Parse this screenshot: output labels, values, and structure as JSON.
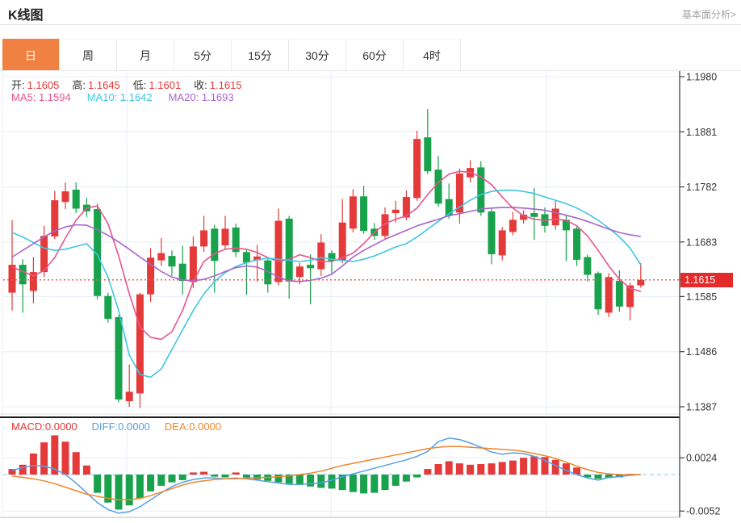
{
  "header": {
    "title": "K线图",
    "link": "基本面分析>"
  },
  "tabs": {
    "items": [
      "日",
      "周",
      "月",
      "5分",
      "15分",
      "30分",
      "60分",
      "4时"
    ],
    "active_index": 0
  },
  "legend": {
    "ohlc": {
      "open_label": "开:",
      "open": "1.1605",
      "high_label": "高:",
      "high": "1.1645",
      "low_label": "低:",
      "low": "1.1601",
      "close_label": "收:",
      "close": "1.1615"
    },
    "ma": {
      "ma5": "MA5: 1.1594",
      "ma10": "MA10: 1.1642",
      "ma20": "MA20: 1.1693"
    },
    "macd": {
      "macd": "MACD:0.0000",
      "diff": "DIFF:0.0000",
      "dea": "DEA:0.0000"
    }
  },
  "price_axis": {
    "labels": [
      "1.1980",
      "1.1881",
      "1.1782",
      "1.1683",
      "1.1585",
      "1.1486",
      "1.1387"
    ],
    "current_price": "1.1615"
  },
  "macd_axis": {
    "labels": [
      "0.0024",
      "-0.0052"
    ]
  },
  "colors": {
    "up": "#e53a3a",
    "down": "#18a24b",
    "ma5": "#e8558d",
    "ma10": "#3ec6e0",
    "ma20": "#a965cc",
    "diff": "#55a0e6",
    "dea": "#f0862b",
    "tab_active": "#f08143",
    "price_line": "#f4595b",
    "badge_bg": "#e42b2b",
    "grid": "#e7edf6",
    "axis": "#444444",
    "zero_line": "#a6d2ef",
    "legend_red": "#e43737",
    "text": "#333333",
    "link": "#a3a3a3"
  },
  "chart_data": {
    "type": "candlestick",
    "title": "K线图 (daily K-line with MA5/MA10/MA20 and MACD)",
    "main": {
      "axis_prices": [
        1.198,
        1.1881,
        1.1782,
        1.1683,
        1.1585,
        1.1486,
        1.1387
      ],
      "ylim": [
        1.137,
        1.1995
      ],
      "current_price": 1.1615,
      "candles": [
        [
          1.1592,
          1.1722,
          1.156,
          1.1642
        ],
        [
          1.1642,
          1.1652,
          1.1556,
          1.1607
        ],
        [
          1.1595,
          1.1656,
          1.1573,
          1.1629
        ],
        [
          1.1629,
          1.1712,
          1.162,
          1.1694
        ],
        [
          1.1693,
          1.1775,
          1.1688,
          1.1758
        ],
        [
          1.1755,
          1.179,
          1.1742,
          1.1774
        ],
        [
          1.1777,
          1.179,
          1.1735,
          1.1743
        ],
        [
          1.175,
          1.1762,
          1.1728,
          1.1738
        ],
        [
          1.1742,
          1.1752,
          1.158,
          1.1586
        ],
        [
          1.1586,
          1.1592,
          1.1538,
          1.1545
        ],
        [
          1.1548,
          1.1552,
          1.1395,
          1.14
        ],
        [
          1.1397,
          1.1463,
          1.1387,
          1.1414
        ],
        [
          1.1411,
          1.1592,
          1.1385,
          1.1589
        ],
        [
          1.1589,
          1.1672,
          1.1575,
          1.1655
        ],
        [
          1.165,
          1.169,
          1.164,
          1.1663
        ],
        [
          1.1658,
          1.1668,
          1.1622,
          1.1639
        ],
        [
          1.1644,
          1.1676,
          1.1588,
          1.1613
        ],
        [
          1.1611,
          1.1693,
          1.16,
          1.1675
        ],
        [
          1.1675,
          1.173,
          1.1665,
          1.1704
        ],
        [
          1.1707,
          1.1714,
          1.1592,
          1.1649
        ],
        [
          1.1677,
          1.173,
          1.167,
          1.1707
        ],
        [
          1.1709,
          1.1716,
          1.1656,
          1.1665
        ],
        [
          1.1665,
          1.167,
          1.1588,
          1.1646
        ],
        [
          1.165,
          1.1678,
          1.1612,
          1.1657
        ],
        [
          1.165,
          1.1655,
          1.1592,
          1.1607
        ],
        [
          1.1611,
          1.1743,
          1.1605,
          1.1721
        ],
        [
          1.1725,
          1.173,
          1.1581,
          1.1612
        ],
        [
          1.162,
          1.1645,
          1.1607,
          1.1639
        ],
        [
          1.1642,
          1.1661,
          1.1571,
          1.1636
        ],
        [
          1.1634,
          1.1697,
          1.1622,
          1.1682
        ],
        [
          1.1663,
          1.1668,
          1.1627,
          1.1649
        ],
        [
          1.1649,
          1.176,
          1.1645,
          1.1718
        ],
        [
          1.1707,
          1.1778,
          1.17,
          1.1765
        ],
        [
          1.1765,
          1.1784,
          1.1698,
          1.1703
        ],
        [
          1.1707,
          1.1717,
          1.1687,
          1.1694
        ],
        [
          1.1694,
          1.1745,
          1.1688,
          1.1733
        ],
        [
          1.1735,
          1.1757,
          1.1718,
          1.1741
        ],
        [
          1.1727,
          1.1776,
          1.1722,
          1.1764
        ],
        [
          1.1762,
          1.1883,
          1.1757,
          1.1868
        ],
        [
          1.1871,
          1.1922,
          1.1805,
          1.181
        ],
        [
          1.1813,
          1.1838,
          1.1746,
          1.1752
        ],
        [
          1.176,
          1.1788,
          1.1725,
          1.173
        ],
        [
          1.1736,
          1.1815,
          1.1716,
          1.1806
        ],
        [
          1.1799,
          1.183,
          1.179,
          1.1816
        ],
        [
          1.1817,
          1.1828,
          1.173,
          1.1736
        ],
        [
          1.1738,
          1.1744,
          1.1643,
          1.1661
        ],
        [
          1.1659,
          1.171,
          1.165,
          1.1704
        ],
        [
          1.1701,
          1.1737,
          1.1695,
          1.1723
        ],
        [
          1.1723,
          1.174,
          1.1716,
          1.1732
        ],
        [
          1.1735,
          1.178,
          1.1687,
          1.1728
        ],
        [
          1.1733,
          1.1745,
          1.17,
          1.1712
        ],
        [
          1.1713,
          1.1758,
          1.1705,
          1.1743
        ],
        [
          1.1723,
          1.173,
          1.1649,
          1.1704
        ],
        [
          1.1707,
          1.1712,
          1.164,
          1.1651
        ],
        [
          1.1656,
          1.166,
          1.1612,
          1.1624
        ],
        [
          1.1627,
          1.163,
          1.1552,
          1.1562
        ],
        [
          1.1556,
          1.1627,
          1.1548,
          1.162
        ],
        [
          1.1613,
          1.1632,
          1.1558,
          1.1567
        ],
        [
          1.1566,
          1.161,
          1.1542,
          1.1605
        ],
        [
          1.1605,
          1.1645,
          1.1601,
          1.1615
        ]
      ],
      "ma5": [
        1.1638,
        1.163,
        1.1622,
        1.1632,
        1.1655,
        1.169,
        1.1722,
        1.1744,
        1.1748,
        1.1716,
        1.1658,
        1.159,
        1.153,
        1.1512,
        1.1508,
        1.1522,
        1.156,
        1.1612,
        1.1648,
        1.1662,
        1.167,
        1.1672,
        1.167,
        1.1664,
        1.1655,
        1.1648,
        1.1652,
        1.166,
        1.1655,
        1.1648,
        1.1648,
        1.1655,
        1.1663,
        1.168,
        1.17,
        1.1716,
        1.1724,
        1.173,
        1.1744,
        1.1768,
        1.179,
        1.1805,
        1.181,
        1.1808,
        1.18,
        1.1786,
        1.1764,
        1.1744,
        1.173,
        1.1724,
        1.1722,
        1.1724,
        1.1722,
        1.1712,
        1.1694,
        1.1668,
        1.164,
        1.1616,
        1.16,
        1.1594
      ],
      "ma10": [
        1.17,
        1.1692,
        1.1682,
        1.1672,
        1.1668,
        1.167,
        1.1675,
        1.168,
        1.166,
        1.162,
        1.156,
        1.148,
        1.1445,
        1.144,
        1.1455,
        1.149,
        1.1525,
        1.156,
        1.159,
        1.1612,
        1.1628,
        1.1639,
        1.1646,
        1.1651,
        1.1654,
        1.1652,
        1.165,
        1.1648,
        1.165,
        1.1655,
        1.1652,
        1.165,
        1.1648,
        1.1652,
        1.1658,
        1.1666,
        1.1674,
        1.168,
        1.1692,
        1.1706,
        1.172,
        1.1734,
        1.1746,
        1.1758,
        1.1768,
        1.1774,
        1.1776,
        1.1776,
        1.1774,
        1.177,
        1.1764,
        1.1758,
        1.1752,
        1.1744,
        1.1734,
        1.1722,
        1.1708,
        1.1692,
        1.1672,
        1.1642
      ],
      "ma20": [
        1.1656,
        1.1668,
        1.168,
        1.1692,
        1.1703,
        1.171,
        1.1714,
        1.1713,
        1.1705,
        1.1695,
        1.1683,
        1.167,
        1.1656,
        1.1643,
        1.163,
        1.162,
        1.1615,
        1.1613,
        1.1616,
        1.1622,
        1.163,
        1.1637,
        1.164,
        1.1638,
        1.163,
        1.162,
        1.1613,
        1.1612,
        1.1614,
        1.1618,
        1.1625,
        1.164,
        1.1656,
        1.1668,
        1.1678,
        1.1688,
        1.1696,
        1.1704,
        1.1712,
        1.1718,
        1.1724,
        1.173,
        1.1734,
        1.1738,
        1.1742,
        1.1744,
        1.1745,
        1.1745,
        1.1744,
        1.1742,
        1.174,
        1.1736,
        1.1731,
        1.1726,
        1.172,
        1.1713,
        1.1706,
        1.17,
        1.1696,
        1.1693
      ]
    },
    "macd": {
      "axis_values": [
        0.0024,
        -0.0052
      ],
      "hist": [
        0.0008,
        0.0014,
        0.003,
        0.0046,
        0.0056,
        0.0047,
        0.0032,
        0.0013,
        -0.0026,
        -0.004,
        -0.005,
        -0.0044,
        -0.0034,
        -0.0024,
        -0.0016,
        -0.0011,
        -0.0008,
        0.0003,
        0.0004,
        -0.0003,
        -0.0004,
        0.0003,
        -0.0004,
        -0.0007,
        -0.0009,
        -0.0011,
        -0.0013,
        -0.0015,
        -0.0017,
        -0.0019,
        -0.002,
        -0.0022,
        -0.0025,
        -0.0027,
        -0.0026,
        -0.0022,
        -0.0016,
        -0.001,
        -0.0004,
        0.0008,
        0.0015,
        0.0019,
        0.0016,
        0.0014,
        0.0015,
        0.0016,
        0.0018,
        0.002,
        0.0024,
        0.0026,
        0.0025,
        0.0021,
        0.0016,
        0.001,
        -0.0004,
        -0.0006,
        -0.0005,
        -0.0004,
        0.0001,
        0.0
      ],
      "diff": [
        0.0006,
        0.001,
        0.0013,
        0.0012,
        0.0008,
        0.0,
        -0.0012,
        -0.0026,
        -0.004,
        -0.005,
        -0.0055,
        -0.0053,
        -0.0046,
        -0.0036,
        -0.0026,
        -0.0017,
        -0.0011,
        -0.0007,
        -0.0005,
        -0.0005,
        -0.0006,
        -0.0005,
        -0.0006,
        -0.0008,
        -0.001,
        -0.0012,
        -0.0014,
        -0.0014,
        -0.0013,
        -0.0012,
        -0.0008,
        -0.0003,
        0.0001,
        0.0005,
        0.0009,
        0.0013,
        0.0017,
        0.0021,
        0.0026,
        0.0033,
        0.0047,
        0.0052,
        0.005,
        0.0045,
        0.0039,
        0.0032,
        0.0029,
        0.0031,
        0.003,
        0.0026,
        0.002,
        0.0013,
        0.0006,
        0.0,
        -0.0005,
        -0.0008,
        -0.0004,
        -0.0003,
        -0.0001,
        0.0
      ],
      "dea": [
        -0.0002,
        -0.0004,
        -0.0006,
        -0.0009,
        -0.0013,
        -0.0018,
        -0.0023,
        -0.0028,
        -0.0031,
        -0.0034,
        -0.0036,
        -0.0036,
        -0.0034,
        -0.003,
        -0.0025,
        -0.002,
        -0.0015,
        -0.0011,
        -0.0009,
        -0.0007,
        -0.0006,
        -0.0006,
        -0.0005,
        -0.0005,
        -0.0004,
        -0.0003,
        -0.0002,
        0.0,
        0.0002,
        0.0005,
        0.0009,
        0.0013,
        0.0016,
        0.0019,
        0.0022,
        0.0025,
        0.0028,
        0.0031,
        0.0034,
        0.0037,
        0.0039,
        0.004,
        0.004,
        0.0039,
        0.0038,
        0.0037,
        0.0036,
        0.0035,
        0.0033,
        0.003,
        0.0027,
        0.0023,
        0.0018,
        0.0012,
        0.0007,
        0.0003,
        0.0001,
        0.0,
        0.0,
        0.0
      ]
    }
  }
}
